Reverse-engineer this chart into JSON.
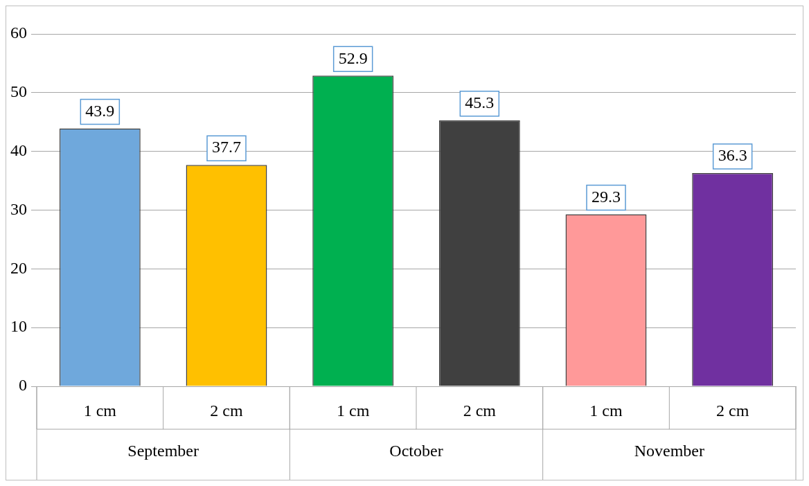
{
  "chart_data": {
    "type": "bar",
    "categories": [
      "1 cm",
      "2 cm",
      "1 cm",
      "2 cm",
      "1 cm",
      "2 cm"
    ],
    "values": [
      43.9,
      37.7,
      52.9,
      45.3,
      29.3,
      36.3
    ],
    "colors": [
      "#6fa8dc",
      "#ffc000",
      "#00b050",
      "#404040",
      "#ff9999",
      "#7030a0"
    ],
    "ylim": [
      0,
      60
    ],
    "yticks": [
      0,
      10,
      20,
      30,
      40,
      50,
      60
    ],
    "grid": "y",
    "data_labels": true,
    "annotations": [
      "September",
      "October",
      "November"
    ]
  }
}
